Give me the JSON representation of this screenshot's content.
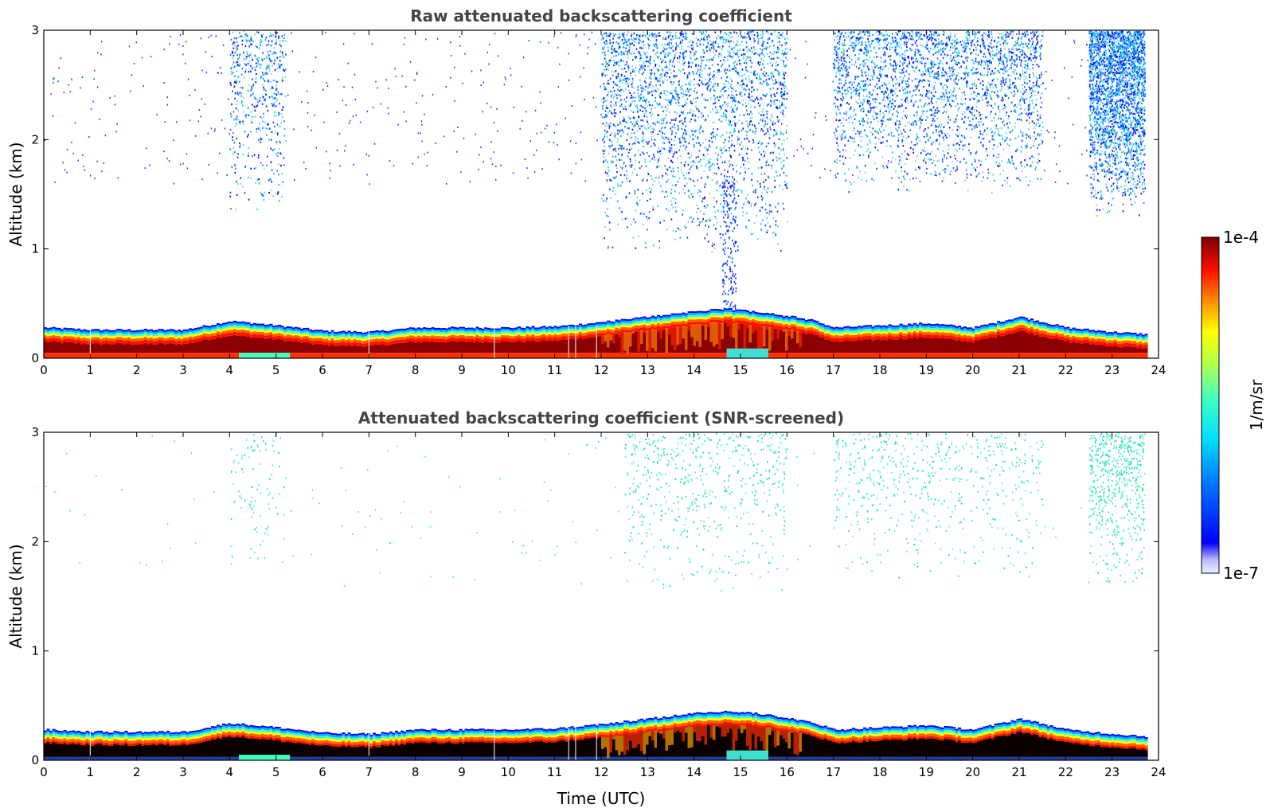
{
  "figure": {
    "colorbar": {
      "max_label": "1e-4",
      "min_label": "1e-7",
      "unit_label": "1/m/sr",
      "colormap": "jet",
      "scale": "log",
      "range": [
        1e-07,
        0.0001
      ]
    }
  },
  "chart_data": [
    {
      "type": "heatmap",
      "title": "Raw attenuated backscattering coefficient",
      "xlabel": "",
      "ylabel": "Altitude (km)",
      "xlim": [
        0,
        24
      ],
      "ylim": [
        0,
        3
      ],
      "xticks": [
        0,
        1,
        2,
        3,
        4,
        5,
        6,
        7,
        8,
        9,
        10,
        11,
        12,
        13,
        14,
        15,
        16,
        17,
        18,
        19,
        20,
        21,
        22,
        23,
        24
      ],
      "yticks": [
        0,
        1,
        2,
        3
      ],
      "data_end_hour": 23.7,
      "boundary_layer_top_km": [
        [
          0,
          0.28
        ],
        [
          1,
          0.26
        ],
        [
          3,
          0.26
        ],
        [
          4,
          0.34
        ],
        [
          5,
          0.3
        ],
        [
          6,
          0.25
        ],
        [
          7,
          0.24
        ],
        [
          8,
          0.28
        ],
        [
          9,
          0.28
        ],
        [
          10,
          0.28
        ],
        [
          11,
          0.29
        ],
        [
          12,
          0.33
        ],
        [
          13,
          0.38
        ],
        [
          14,
          0.43
        ],
        [
          14.7,
          0.45
        ],
        [
          15.5,
          0.42
        ],
        [
          16.5,
          0.35
        ],
        [
          17,
          0.28
        ],
        [
          18,
          0.3
        ],
        [
          19,
          0.32
        ],
        [
          20,
          0.28
        ],
        [
          21,
          0.38
        ],
        [
          22,
          0.28
        ],
        [
          23,
          0.24
        ],
        [
          23.7,
          0.22
        ]
      ],
      "upper_noise_regions": [
        {
          "hours": [
            4,
            5.2
          ],
          "alt_km": [
            1.3,
            3.0
          ],
          "density": "low"
        },
        {
          "hours": [
            12,
            16
          ],
          "alt_km": [
            0.9,
            3.0
          ],
          "density": "high"
        },
        {
          "hours": [
            17,
            21.5
          ],
          "alt_km": [
            1.5,
            3.0
          ],
          "density": "high"
        },
        {
          "hours": [
            22.5,
            23.7
          ],
          "alt_km": [
            1.3,
            3.0
          ],
          "density": "high"
        }
      ]
    },
    {
      "type": "heatmap",
      "title": "Attenuated backscattering coefficient (SNR-screened)",
      "xlabel": "Time (UTC)",
      "ylabel": "Altitude (km)",
      "xlim": [
        0,
        24
      ],
      "ylim": [
        0,
        3
      ],
      "xticks": [
        0,
        1,
        2,
        3,
        4,
        5,
        6,
        7,
        8,
        9,
        10,
        11,
        12,
        13,
        14,
        15,
        16,
        17,
        18,
        19,
        20,
        21,
        22,
        23,
        24
      ],
      "yticks": [
        0,
        1,
        2,
        3
      ],
      "data_end_hour": 23.7,
      "boundary_layer_top_km": [
        [
          0,
          0.28
        ],
        [
          1,
          0.26
        ],
        [
          3,
          0.26
        ],
        [
          4,
          0.34
        ],
        [
          5,
          0.3
        ],
        [
          6,
          0.25
        ],
        [
          7,
          0.24
        ],
        [
          8,
          0.28
        ],
        [
          9,
          0.28
        ],
        [
          10,
          0.28
        ],
        [
          11,
          0.29
        ],
        [
          12,
          0.33
        ],
        [
          13,
          0.38
        ],
        [
          14,
          0.43
        ],
        [
          14.7,
          0.45
        ],
        [
          15.5,
          0.42
        ],
        [
          16.5,
          0.35
        ],
        [
          17,
          0.28
        ],
        [
          18,
          0.3
        ],
        [
          19,
          0.32
        ],
        [
          20,
          0.28
        ],
        [
          21,
          0.38
        ],
        [
          22,
          0.28
        ],
        [
          23,
          0.24
        ],
        [
          23.7,
          0.22
        ]
      ],
      "upper_noise_regions": [
        {
          "hours": [
            4,
            5.2
          ],
          "alt_km": [
            1.6,
            3.0
          ],
          "density": "very low"
        },
        {
          "hours": [
            12.5,
            16
          ],
          "alt_km": [
            1.5,
            3.0
          ],
          "density": "low"
        },
        {
          "hours": [
            17,
            21.5
          ],
          "alt_km": [
            1.6,
            3.0
          ],
          "density": "low"
        },
        {
          "hours": [
            22.5,
            23.7
          ],
          "alt_km": [
            1.6,
            3.0
          ],
          "density": "low"
        }
      ]
    }
  ]
}
